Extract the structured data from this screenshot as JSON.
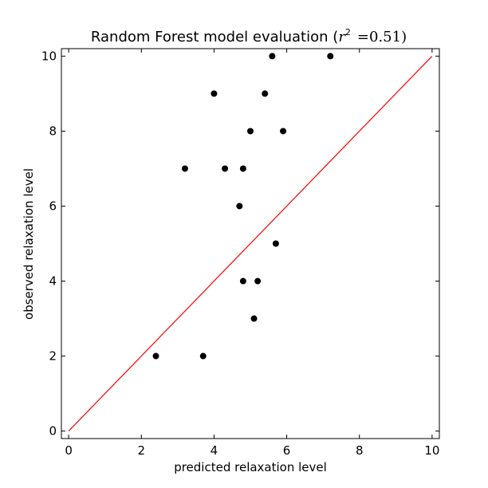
{
  "chart_data": {
    "type": "scatter",
    "title": "Random Forest model evaluation",
    "title_math": {
      "prefix": "(",
      "var": "r",
      "sup": "2",
      "eq": "=0.51)"
    },
    "xlabel": "predicted relaxation level",
    "ylabel": "observed relaxation level",
    "xlim": [
      -0.2,
      10.2
    ],
    "ylim": [
      -0.2,
      10.2
    ],
    "xticks": [
      0,
      2,
      4,
      6,
      8,
      10
    ],
    "yticks": [
      0,
      2,
      4,
      6,
      8,
      10
    ],
    "grid": false,
    "series": [
      {
        "points": [
          {
            "x": 2.4,
            "y": 2
          },
          {
            "x": 3.7,
            "y": 2
          },
          {
            "x": 5.1,
            "y": 3
          },
          {
            "x": 4.8,
            "y": 4
          },
          {
            "x": 5.2,
            "y": 4
          },
          {
            "x": 5.7,
            "y": 5
          },
          {
            "x": 4.7,
            "y": 6
          },
          {
            "x": 3.2,
            "y": 7
          },
          {
            "x": 4.3,
            "y": 7
          },
          {
            "x": 4.8,
            "y": 7
          },
          {
            "x": 5.0,
            "y": 8
          },
          {
            "x": 5.9,
            "y": 8
          },
          {
            "x": 4.0,
            "y": 9
          },
          {
            "x": 5.4,
            "y": 9
          },
          {
            "x": 5.6,
            "y": 10
          },
          {
            "x": 7.2,
            "y": 10
          }
        ],
        "color": "#000000"
      }
    ],
    "reference_line": {
      "from": [
        0,
        0
      ],
      "to": [
        10,
        10
      ],
      "color": "#ff0000"
    }
  }
}
